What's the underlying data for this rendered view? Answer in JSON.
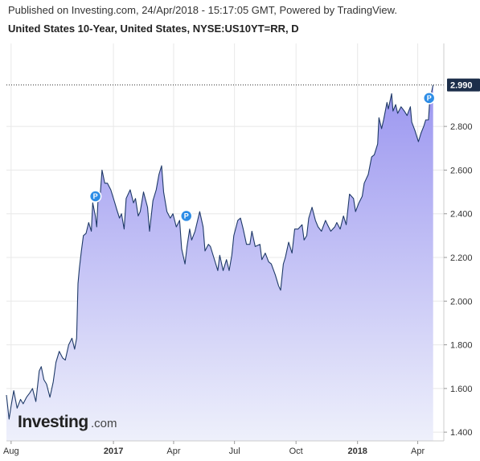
{
  "header": {
    "published": "Published on Investing.com, 24/Apr/2018 - 15:17:05 GMT, Powered by TradingView.",
    "title": "United States 10-Year, United States, NYSE:US10YT=RR, D"
  },
  "logo": {
    "name": "Investing",
    "suffix": ".com"
  },
  "colors": {
    "line": "#1f3a68",
    "fill_top": "#9b96f0",
    "fill_bottom": "#eef0fb",
    "grid": "#e8e8e8",
    "price_tag": "#1c2e4a",
    "marker": "#2e8de6",
    "hline": "#333333"
  },
  "chart_data": {
    "type": "area",
    "title": "United States 10-Year, United States, NYSE:US10YT=RR, D",
    "xlabel": "",
    "ylabel": "",
    "ylim": [
      1.36,
      3.18
    ],
    "yticks": [
      "1.400",
      "1.600",
      "1.800",
      "2.000",
      "2.200",
      "2.400",
      "2.600",
      "2.800"
    ],
    "x_range": [
      "2016-07-25",
      "2018-05-10"
    ],
    "xticks": [
      {
        "label": "Aug",
        "date": "2016-08-01",
        "bold": false
      },
      {
        "label": "2017",
        "date": "2017-01-01",
        "bold": true
      },
      {
        "label": "Apr",
        "date": "2017-04-01",
        "bold": false
      },
      {
        "label": "Jul",
        "date": "2017-07-01",
        "bold": false
      },
      {
        "label": "Oct",
        "date": "2017-10-01",
        "bold": false
      },
      {
        "label": "2018",
        "date": "2018-01-01",
        "bold": true
      },
      {
        "label": "Apr",
        "date": "2018-04-01",
        "bold": false
      }
    ],
    "last_value": "2.990",
    "last_value_num": 2.99,
    "markers": [
      {
        "label": "P",
        "date": "2016-12-05",
        "y": 2.48
      },
      {
        "label": "P",
        "date": "2017-04-20",
        "y": 2.39
      },
      {
        "label": "P",
        "date": "2018-04-18",
        "y": 2.93
      }
    ],
    "series": [
      {
        "points": [
          [
            "2016-07-25",
            1.57
          ],
          [
            "2016-07-29",
            1.46
          ],
          [
            "2016-08-01",
            1.52
          ],
          [
            "2016-08-05",
            1.59
          ],
          [
            "2016-08-10",
            1.51
          ],
          [
            "2016-08-15",
            1.55
          ],
          [
            "2016-08-19",
            1.53
          ],
          [
            "2016-08-24",
            1.56
          ],
          [
            "2016-08-29",
            1.58
          ],
          [
            "2016-09-02",
            1.6
          ],
          [
            "2016-09-07",
            1.54
          ],
          [
            "2016-09-12",
            1.68
          ],
          [
            "2016-09-15",
            1.7
          ],
          [
            "2016-09-19",
            1.64
          ],
          [
            "2016-09-23",
            1.62
          ],
          [
            "2016-09-28",
            1.56
          ],
          [
            "2016-10-03",
            1.63
          ],
          [
            "2016-10-07",
            1.72
          ],
          [
            "2016-10-12",
            1.77
          ],
          [
            "2016-10-17",
            1.74
          ],
          [
            "2016-10-21",
            1.73
          ],
          [
            "2016-10-26",
            1.8
          ],
          [
            "2016-10-31",
            1.83
          ],
          [
            "2016-11-04",
            1.78
          ],
          [
            "2016-11-07",
            1.83
          ],
          [
            "2016-11-09",
            2.08
          ],
          [
            "2016-11-11",
            2.15
          ],
          [
            "2016-11-14",
            2.23
          ],
          [
            "2016-11-17",
            2.3
          ],
          [
            "2016-11-21",
            2.31
          ],
          [
            "2016-11-25",
            2.36
          ],
          [
            "2016-11-29",
            2.32
          ],
          [
            "2016-12-01",
            2.45
          ],
          [
            "2016-12-05",
            2.39
          ],
          [
            "2016-12-07",
            2.34
          ],
          [
            "2016-12-09",
            2.47
          ],
          [
            "2016-12-12",
            2.48
          ],
          [
            "2016-12-15",
            2.6
          ],
          [
            "2016-12-19",
            2.54
          ],
          [
            "2016-12-23",
            2.54
          ],
          [
            "2016-12-28",
            2.51
          ],
          [
            "2017-01-03",
            2.45
          ],
          [
            "2017-01-06",
            2.42
          ],
          [
            "2017-01-10",
            2.38
          ],
          [
            "2017-01-13",
            2.4
          ],
          [
            "2017-01-17",
            2.33
          ],
          [
            "2017-01-20",
            2.47
          ],
          [
            "2017-01-26",
            2.51
          ],
          [
            "2017-01-31",
            2.45
          ],
          [
            "2017-02-03",
            2.47
          ],
          [
            "2017-02-07",
            2.39
          ],
          [
            "2017-02-10",
            2.41
          ],
          [
            "2017-02-15",
            2.5
          ],
          [
            "2017-02-21",
            2.43
          ],
          [
            "2017-02-24",
            2.32
          ],
          [
            "2017-03-01",
            2.46
          ],
          [
            "2017-03-06",
            2.51
          ],
          [
            "2017-03-10",
            2.58
          ],
          [
            "2017-03-14",
            2.62
          ],
          [
            "2017-03-17",
            2.5
          ],
          [
            "2017-03-22",
            2.41
          ],
          [
            "2017-03-27",
            2.38
          ],
          [
            "2017-03-31",
            2.4
          ],
          [
            "2017-04-05",
            2.34
          ],
          [
            "2017-04-10",
            2.37
          ],
          [
            "2017-04-13",
            2.24
          ],
          [
            "2017-04-18",
            2.17
          ],
          [
            "2017-04-21",
            2.25
          ],
          [
            "2017-04-25",
            2.33
          ],
          [
            "2017-04-28",
            2.28
          ],
          [
            "2017-05-03",
            2.32
          ],
          [
            "2017-05-10",
            2.41
          ],
          [
            "2017-05-15",
            2.34
          ],
          [
            "2017-05-18",
            2.23
          ],
          [
            "2017-05-23",
            2.26
          ],
          [
            "2017-05-26",
            2.25
          ],
          [
            "2017-05-31",
            2.2
          ],
          [
            "2017-06-06",
            2.14
          ],
          [
            "2017-06-09",
            2.21
          ],
          [
            "2017-06-14",
            2.14
          ],
          [
            "2017-06-19",
            2.19
          ],
          [
            "2017-06-23",
            2.14
          ],
          [
            "2017-06-27",
            2.21
          ],
          [
            "2017-06-30",
            2.3
          ],
          [
            "2017-07-06",
            2.37
          ],
          [
            "2017-07-10",
            2.38
          ],
          [
            "2017-07-14",
            2.33
          ],
          [
            "2017-07-19",
            2.26
          ],
          [
            "2017-07-24",
            2.26
          ],
          [
            "2017-07-27",
            2.32
          ],
          [
            "2017-08-01",
            2.25
          ],
          [
            "2017-08-08",
            2.26
          ],
          [
            "2017-08-11",
            2.19
          ],
          [
            "2017-08-16",
            2.22
          ],
          [
            "2017-08-21",
            2.18
          ],
          [
            "2017-08-25",
            2.17
          ],
          [
            "2017-08-31",
            2.12
          ],
          [
            "2017-09-05",
            2.07
          ],
          [
            "2017-09-08",
            2.05
          ],
          [
            "2017-09-12",
            2.17
          ],
          [
            "2017-09-15",
            2.2
          ],
          [
            "2017-09-20",
            2.27
          ],
          [
            "2017-09-25",
            2.22
          ],
          [
            "2017-09-29",
            2.33
          ],
          [
            "2017-10-04",
            2.33
          ],
          [
            "2017-10-10",
            2.35
          ],
          [
            "2017-10-13",
            2.28
          ],
          [
            "2017-10-17",
            2.3
          ],
          [
            "2017-10-20",
            2.38
          ],
          [
            "2017-10-25",
            2.43
          ],
          [
            "2017-10-30",
            2.37
          ],
          [
            "2017-11-03",
            2.34
          ],
          [
            "2017-11-08",
            2.32
          ],
          [
            "2017-11-14",
            2.37
          ],
          [
            "2017-11-17",
            2.35
          ],
          [
            "2017-11-22",
            2.32
          ],
          [
            "2017-11-28",
            2.34
          ],
          [
            "2017-12-01",
            2.36
          ],
          [
            "2017-12-06",
            2.33
          ],
          [
            "2017-12-11",
            2.39
          ],
          [
            "2017-12-15",
            2.35
          ],
          [
            "2017-12-20",
            2.49
          ],
          [
            "2017-12-26",
            2.47
          ],
          [
            "2017-12-29",
            2.41
          ],
          [
            "2018-01-03",
            2.45
          ],
          [
            "2018-01-08",
            2.48
          ],
          [
            "2018-01-11",
            2.54
          ],
          [
            "2018-01-17",
            2.58
          ],
          [
            "2018-01-22",
            2.66
          ],
          [
            "2018-01-26",
            2.67
          ],
          [
            "2018-01-31",
            2.72
          ],
          [
            "2018-02-02",
            2.84
          ],
          [
            "2018-02-06",
            2.79
          ],
          [
            "2018-02-09",
            2.83
          ],
          [
            "2018-02-14",
            2.91
          ],
          [
            "2018-02-16",
            2.88
          ],
          [
            "2018-02-21",
            2.95
          ],
          [
            "2018-02-23",
            2.87
          ],
          [
            "2018-02-27",
            2.9
          ],
          [
            "2018-03-02",
            2.86
          ],
          [
            "2018-03-07",
            2.89
          ],
          [
            "2018-03-12",
            2.87
          ],
          [
            "2018-03-16",
            2.85
          ],
          [
            "2018-03-21",
            2.89
          ],
          [
            "2018-03-23",
            2.82
          ],
          [
            "2018-03-28",
            2.78
          ],
          [
            "2018-04-02",
            2.73
          ],
          [
            "2018-04-06",
            2.77
          ],
          [
            "2018-04-10",
            2.8
          ],
          [
            "2018-04-13",
            2.83
          ],
          [
            "2018-04-17",
            2.83
          ],
          [
            "2018-04-19",
            2.92
          ],
          [
            "2018-04-24",
            2.99
          ]
        ]
      }
    ]
  }
}
